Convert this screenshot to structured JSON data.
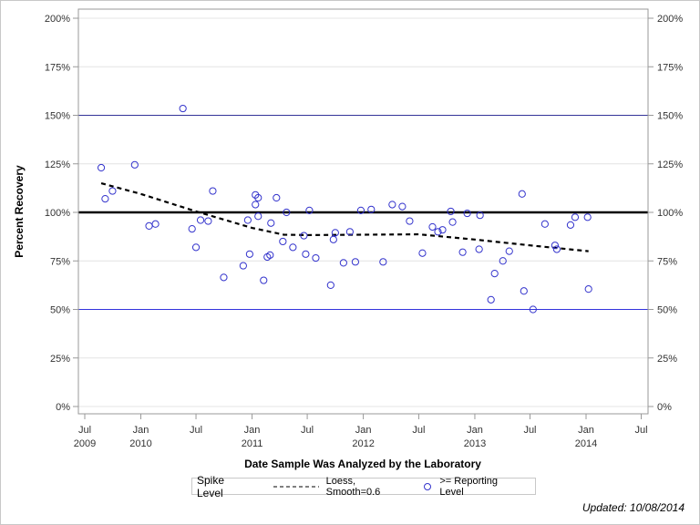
{
  "chart_data": {
    "type": "scatter",
    "title": "",
    "xlabel": "Date Sample Was Analyzed by the Laboratory",
    "ylabel": "Percent Recovery",
    "ylim": [
      0,
      200
    ],
    "yticks": [
      "0%",
      "25%",
      "50%",
      "75%",
      "100%",
      "125%",
      "150%",
      "175%",
      "200%"
    ],
    "ytick_values": [
      0,
      25,
      50,
      75,
      100,
      125,
      150,
      175,
      200
    ],
    "xticks": [
      {
        "date": "2009-07-01",
        "label": "Jul",
        "year": "2009"
      },
      {
        "date": "2010-01-01",
        "label": "Jan",
        "year": "2010"
      },
      {
        "date": "2010-07-01",
        "label": "Jul",
        "year": ""
      },
      {
        "date": "2011-01-01",
        "label": "Jan",
        "year": "2011"
      },
      {
        "date": "2011-07-01",
        "label": "Jul",
        "year": ""
      },
      {
        "date": "2012-01-01",
        "label": "Jan",
        "year": "2012"
      },
      {
        "date": "2012-07-01",
        "label": "Jul",
        "year": ""
      },
      {
        "date": "2013-01-01",
        "label": "Jan",
        "year": "2013"
      },
      {
        "date": "2013-07-01",
        "label": "Jul",
        "year": ""
      },
      {
        "date": "2014-01-01",
        "label": "Jan",
        "year": "2014"
      },
      {
        "date": "2014-07-01",
        "label": "Jul",
        "year": ""
      }
    ],
    "grid": true,
    "reference_lines": [
      {
        "value": 150,
        "color": "#333399",
        "style": "thin"
      },
      {
        "value": 100,
        "color": "#000000",
        "style": "thick"
      },
      {
        "value": 50,
        "color": "#3333dd",
        "style": "thin"
      }
    ],
    "series": [
      {
        "name": ">= Reporting Level",
        "type": "scatter",
        "color": "#3333cc",
        "points": [
          [
            "2009-08-24",
            123
          ],
          [
            "2009-09-06",
            107
          ],
          [
            "2009-09-30",
            111
          ],
          [
            "2009-12-12",
            124.5
          ],
          [
            "2010-01-28",
            93
          ],
          [
            "2010-02-18",
            94
          ],
          [
            "2010-05-19",
            153.5
          ],
          [
            "2010-06-18",
            91.5
          ],
          [
            "2010-07-01",
            82
          ],
          [
            "2010-07-16",
            96
          ],
          [
            "2010-08-10",
            95.5
          ],
          [
            "2010-08-25",
            111
          ],
          [
            "2010-09-30",
            66.5
          ],
          [
            "2010-12-03",
            72.5
          ],
          [
            "2010-12-18",
            96
          ],
          [
            "2010-12-24",
            78.5
          ],
          [
            "2011-01-12",
            104
          ],
          [
            "2011-01-12",
            109
          ],
          [
            "2011-01-21",
            107.5
          ],
          [
            "2011-01-21",
            98
          ],
          [
            "2011-02-08",
            65
          ],
          [
            "2011-02-20",
            77
          ],
          [
            "2011-03-01",
            78
          ],
          [
            "2011-03-04",
            94.5
          ],
          [
            "2011-03-22",
            107.5
          ],
          [
            "2011-04-12",
            85
          ],
          [
            "2011-04-24",
            100
          ],
          [
            "2011-05-15",
            82
          ],
          [
            "2011-06-20",
            88
          ],
          [
            "2011-06-26",
            78.5
          ],
          [
            "2011-07-08",
            101
          ],
          [
            "2011-07-29",
            76.5
          ],
          [
            "2011-09-16",
            62.5
          ],
          [
            "2011-09-25",
            86
          ],
          [
            "2011-10-01",
            89.5
          ],
          [
            "2011-10-28",
            74
          ],
          [
            "2011-11-18",
            90
          ],
          [
            "2011-12-06",
            74.5
          ],
          [
            "2011-12-24",
            101
          ],
          [
            "2012-01-27",
            101.5
          ],
          [
            "2012-03-06",
            74.5
          ],
          [
            "2012-04-05",
            104
          ],
          [
            "2012-05-08",
            103
          ],
          [
            "2012-06-01",
            95.5
          ],
          [
            "2012-07-13",
            79
          ],
          [
            "2012-08-15",
            92.5
          ],
          [
            "2012-09-02",
            90
          ],
          [
            "2012-09-17",
            91
          ],
          [
            "2012-10-14",
            100.5
          ],
          [
            "2012-10-20",
            95
          ],
          [
            "2012-11-22",
            79.5
          ],
          [
            "2012-12-07",
            99.5
          ],
          [
            "2013-01-15",
            81
          ],
          [
            "2013-01-18",
            98.5
          ],
          [
            "2013-02-23",
            55
          ],
          [
            "2013-03-07",
            68.5
          ],
          [
            "2013-04-03",
            75
          ],
          [
            "2013-04-24",
            80
          ],
          [
            "2013-06-05",
            109.5
          ],
          [
            "2013-06-11",
            59.5
          ],
          [
            "2013-07-11",
            50
          ],
          [
            "2013-08-19",
            94
          ],
          [
            "2013-09-21",
            83
          ],
          [
            "2013-09-27",
            81
          ],
          [
            "2013-11-11",
            93.5
          ],
          [
            "2013-11-26",
            97.5
          ],
          [
            "2014-01-06",
            97.5
          ],
          [
            "2014-01-09",
            60.5
          ]
        ]
      },
      {
        "name": "Loess, Smooth=0.6",
        "type": "line",
        "style": "dashed",
        "color": "#000000",
        "points": [
          [
            "2009-08-24",
            115
          ],
          [
            "2010-01-01",
            109.5
          ],
          [
            "2010-07-01",
            100.5
          ],
          [
            "2011-01-01",
            92
          ],
          [
            "2011-04-15",
            88.5
          ],
          [
            "2011-07-01",
            88.3
          ],
          [
            "2012-01-01",
            88.5
          ],
          [
            "2012-07-01",
            88.7
          ],
          [
            "2013-01-01",
            86
          ],
          [
            "2013-07-01",
            83
          ],
          [
            "2014-01-09",
            80
          ]
        ]
      }
    ],
    "legend": {
      "position": "bottom",
      "title": "Spike Level",
      "entries": [
        "Loess, Smooth=0.6",
        ">= Reporting Level"
      ]
    }
  },
  "footer": {
    "updated": "Updated: 10/08/2014"
  }
}
